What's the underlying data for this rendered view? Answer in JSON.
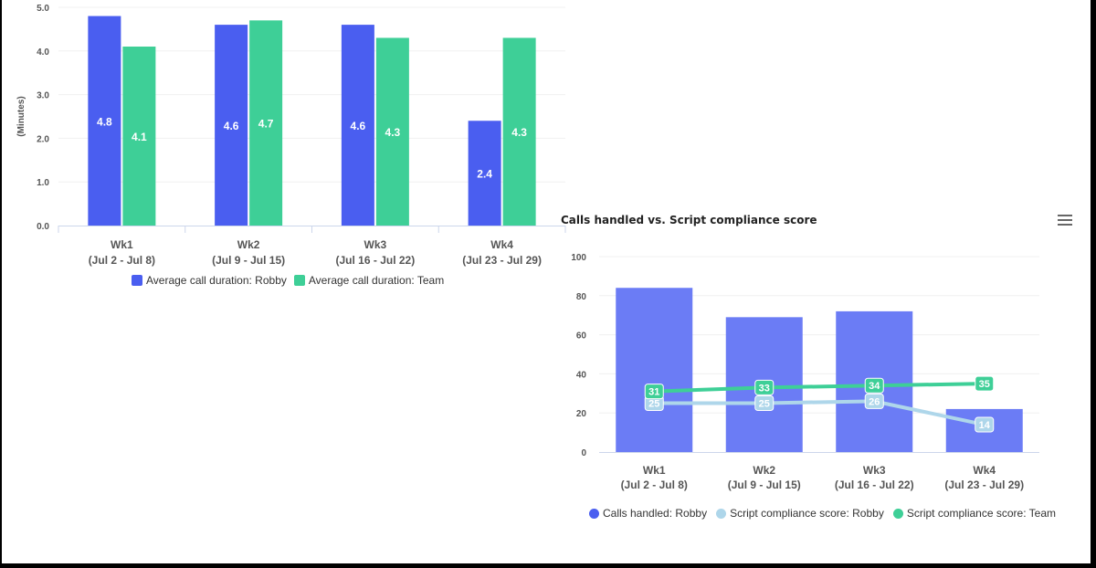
{
  "chart_data": [
    {
      "type": "bar",
      "title": "",
      "ylabel": "(Minutes)",
      "xlabel": "",
      "ylim": [
        0,
        5
      ],
      "yticks": [
        "0.0",
        "1.0",
        "2.0",
        "3.0",
        "4.0",
        "5.0"
      ],
      "categories": [
        [
          "Wk1",
          "(Jul 2 - Jul 8)"
        ],
        [
          "Wk2",
          "(Jul 9 - Jul 15)"
        ],
        [
          "Wk3",
          "(Jul 16 - Jul 22)"
        ],
        [
          "Wk4",
          "(Jul 23 - Jul 29)"
        ]
      ],
      "series": [
        {
          "name": "Average call duration: Robby",
          "color": "#4a5ef0",
          "values": [
            4.8,
            4.6,
            4.6,
            2.4
          ],
          "labels": [
            "4.8",
            "4.6",
            "4.6",
            "2.4"
          ]
        },
        {
          "name": "Average call duration: Team",
          "color": "#3ecf97",
          "values": [
            4.1,
            4.7,
            4.3,
            4.3
          ],
          "labels": [
            "4.1",
            "4.7",
            "4.3",
            "4.3"
          ]
        }
      ],
      "legend": "bottom-center",
      "grid": true
    },
    {
      "type": "bar+line",
      "title": "Calls handled vs. Script compliance score",
      "ylabel": "",
      "xlabel": "",
      "ylim": [
        0,
        100
      ],
      "yticks": [
        "0",
        "20",
        "40",
        "60",
        "80",
        "100"
      ],
      "categories": [
        [
          "Wk1",
          "(Jul 2 - Jul 8)"
        ],
        [
          "Wk2",
          "(Jul 9 - Jul 15)"
        ],
        [
          "Wk3",
          "(Jul 16 - Jul 22)"
        ],
        [
          "Wk4",
          "(Jul 23 - Jul 29)"
        ]
      ],
      "series": [
        {
          "name": "Calls handled: Robby",
          "kind": "bar",
          "color": "#6b7cf5",
          "values": [
            84,
            69,
            72,
            22
          ]
        },
        {
          "name": "Script compliance score: Robby",
          "kind": "line",
          "color": "#aed6ea",
          "values": [
            25,
            25,
            26,
            14
          ],
          "labels": [
            "25",
            "25",
            "26",
            "14"
          ]
        },
        {
          "name": "Script compliance score: Team",
          "kind": "line",
          "color": "#3ecf97",
          "values": [
            31,
            33,
            34,
            35
          ],
          "labels": [
            "31",
            "33",
            "34",
            "35"
          ]
        }
      ],
      "legend": "bottom-center",
      "grid": true
    }
  ]
}
